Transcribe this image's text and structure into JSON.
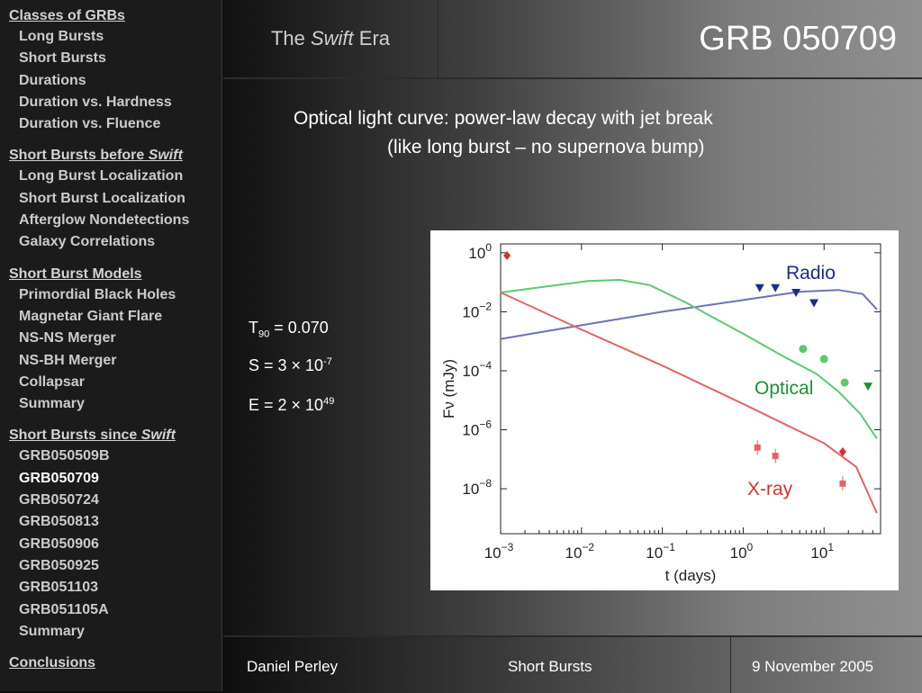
{
  "sidebar": {
    "sections": [
      {
        "heading": "Classes of GRBs",
        "heading_pre": "Classes of GRBs",
        "heading_em": "",
        "items": [
          "Long Bursts",
          "Short Bursts",
          "Durations",
          "Duration vs. Hardness",
          "Duration vs. Fluence"
        ]
      },
      {
        "heading": "Short Bursts before Swift",
        "heading_pre": "Short Bursts before ",
        "heading_em": "Swift",
        "items": [
          "Long Burst Localization",
          "Short Burst Localization",
          "Afterglow Nondetections",
          "Galaxy Correlations"
        ]
      },
      {
        "heading": "Short Burst Models",
        "heading_pre": "Short Burst Models",
        "heading_em": "",
        "items": [
          "Primordial Black Holes",
          "Magnetar Giant Flare",
          "NS-NS Merger",
          "NS-BH Merger",
          "Collapsar",
          "Summary"
        ]
      },
      {
        "heading": "Short Bursts since Swift",
        "heading_pre": "Short Bursts since ",
        "heading_em": "Swift",
        "items": [
          "GRB050509B",
          "GRB050709",
          "GRB050724",
          "GRB050813",
          "GRB050906",
          "GRB050925",
          "GRB051103",
          "GRB051105A",
          "Summary"
        ]
      },
      {
        "heading": "Conclusions",
        "heading_pre": "Conclusions",
        "heading_em": "",
        "items": []
      }
    ],
    "active_item": "GRB050709"
  },
  "header": {
    "app_title_pre": "The ",
    "app_title_em": "Swift",
    "app_title_post": " Era",
    "slide_title": "GRB 050709"
  },
  "content": {
    "subtitle_line1": "Optical light curve:  power-law decay with jet break",
    "subtitle_line2": "(like long burst – no supernova bump)",
    "t90_label": "T",
    "t90_sub": "90",
    "t90_value": " = 0.070",
    "s_label": "S = 3 × 10",
    "s_exp": "-7",
    "e_label": "E = 2 × 10",
    "e_exp": "49"
  },
  "footer": {
    "author": "Daniel Perley",
    "topic": "Short Bursts",
    "date": "9 November 2005"
  },
  "chart_data": {
    "type": "line",
    "xlabel": "t (days)",
    "ylabel": "Fν (mJy)",
    "xscale": "log",
    "yscale": "log",
    "xlim": [
      0.001,
      50
    ],
    "ylim": [
      3e-10,
      2
    ],
    "xticks": [
      0.001,
      0.01,
      0.1,
      1,
      10
    ],
    "xtick_labels": [
      [
        "10",
        "−3"
      ],
      [
        "10",
        "−2"
      ],
      [
        "10",
        "−1"
      ],
      [
        "10",
        "0"
      ],
      [
        "10",
        "1"
      ]
    ],
    "yticks": [
      1,
      0.01,
      0.0001,
      1e-06,
      1e-08
    ],
    "ytick_labels": [
      [
        "10",
        "0"
      ],
      [
        "10",
        "−2"
      ],
      [
        "10",
        "−4"
      ],
      [
        "10",
        "−6"
      ],
      [
        "10",
        "−8"
      ]
    ],
    "series": [
      {
        "name": "Radio",
        "color": "#1a2b8f",
        "line_color": "#6c73b8",
        "curve": [
          [
            0.001,
            0.0012
          ],
          [
            0.01,
            0.0035
          ],
          [
            0.1,
            0.01
          ],
          [
            1,
            0.025
          ],
          [
            5,
            0.048
          ],
          [
            15,
            0.055
          ],
          [
            30,
            0.04
          ],
          [
            45,
            0.012
          ]
        ],
        "points": [
          {
            "x": 1.6,
            "y": 0.065,
            "marker": "down-triangle"
          },
          {
            "x": 2.5,
            "y": 0.065,
            "marker": "down-triangle"
          },
          {
            "x": 4.5,
            "y": 0.045,
            "marker": "down-triangle"
          },
          {
            "x": 7.5,
            "y": 0.02,
            "marker": "down-triangle"
          }
        ]
      },
      {
        "name": "Optical",
        "color": "#1f8f35",
        "line_color": "#5cc972",
        "curve": [
          [
            0.001,
            0.045
          ],
          [
            0.005,
            0.08
          ],
          [
            0.012,
            0.11
          ],
          [
            0.03,
            0.12
          ],
          [
            0.07,
            0.08
          ],
          [
            0.2,
            0.02
          ],
          [
            0.5,
            0.005
          ],
          [
            1,
            0.0018
          ],
          [
            3,
            0.00033
          ],
          [
            8,
            8e-05
          ],
          [
            15,
            2e-05
          ],
          [
            28,
            3.5e-06
          ],
          [
            45,
            5e-07
          ]
        ],
        "points": [
          {
            "x": 5.5,
            "y": 0.00055,
            "marker": "circle"
          },
          {
            "x": 10,
            "y": 0.00025,
            "marker": "circle"
          },
          {
            "x": 18,
            "y": 4e-05,
            "marker": "circle"
          },
          {
            "x": 35,
            "y": 3e-05,
            "marker": "down-triangle"
          }
        ]
      },
      {
        "name": "X-ray",
        "color": "#d93030",
        "line_color": "#e06565",
        "curve": [
          [
            0.001,
            0.045
          ],
          [
            0.01,
            0.0025
          ],
          [
            0.1,
            0.00015
          ],
          [
            1,
            7.5e-06
          ],
          [
            10,
            3.5e-07
          ],
          [
            25,
            5.5e-08
          ],
          [
            45,
            1.5e-09
          ]
        ],
        "points": [
          {
            "x": 0.0012,
            "y": 0.8,
            "marker": "diamond"
          },
          {
            "x": 1.5,
            "y": 2.5e-07,
            "marker": "square"
          },
          {
            "x": 2.5,
            "y": 1.3e-07,
            "marker": "square"
          },
          {
            "x": 17,
            "y": 1.8e-07,
            "marker": "diamond"
          },
          {
            "x": 17,
            "y": 1.5e-08,
            "marker": "square"
          }
        ]
      }
    ],
    "series_labels": [
      "Radio",
      "Optical",
      "X-ray"
    ],
    "grid": false
  }
}
